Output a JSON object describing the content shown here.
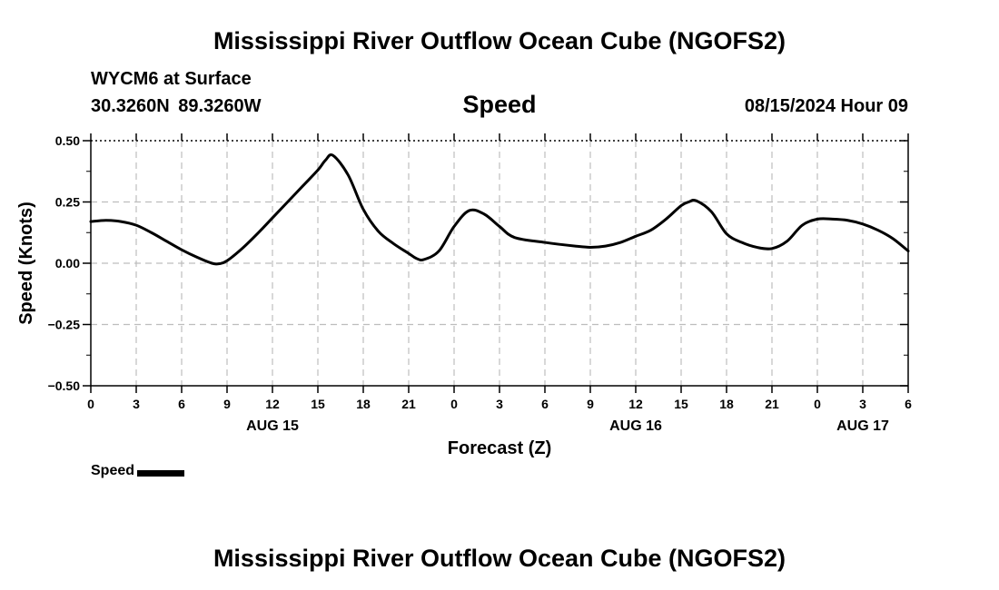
{
  "header": {
    "title": "Mississippi River Outflow Ocean Cube (NGOFS2)",
    "station": "WYCM6 at Surface",
    "coords": "30.3260N  89.3260W",
    "plot_label": "Speed",
    "run_time": "08/15/2024 Hour 09"
  },
  "footer": {
    "title": "Mississippi River Outflow Ocean Cube (NGOFS2)"
  },
  "chart_data": {
    "type": "line",
    "title": "Speed",
    "xlabel": "Forecast (Z)",
    "ylabel": "Speed (Knots)",
    "xlim": [
      0,
      54
    ],
    "ylim": [
      -0.5,
      0.5
    ],
    "grid": true,
    "yticks": [
      {
        "value": 0.5,
        "label": "0.50"
      },
      {
        "value": 0.25,
        "label": "0.25"
      },
      {
        "value": 0.0,
        "label": "0.00"
      },
      {
        "value": -0.25,
        "label": "−0.25"
      },
      {
        "value": -0.5,
        "label": "−0.50"
      }
    ],
    "xticks": [
      {
        "value": 0,
        "label": "0"
      },
      {
        "value": 3,
        "label": "3"
      },
      {
        "value": 6,
        "label": "6"
      },
      {
        "value": 9,
        "label": "9"
      },
      {
        "value": 12,
        "label": "12"
      },
      {
        "value": 15,
        "label": "15"
      },
      {
        "value": 18,
        "label": "18"
      },
      {
        "value": 21,
        "label": "21"
      },
      {
        "value": 24,
        "label": "0"
      },
      {
        "value": 27,
        "label": "3"
      },
      {
        "value": 30,
        "label": "6"
      },
      {
        "value": 33,
        "label": "9"
      },
      {
        "value": 36,
        "label": "12"
      },
      {
        "value": 39,
        "label": "15"
      },
      {
        "value": 42,
        "label": "18"
      },
      {
        "value": 45,
        "label": "21"
      },
      {
        "value": 48,
        "label": "0"
      },
      {
        "value": 51,
        "label": "3"
      },
      {
        "value": 54,
        "label": "6"
      }
    ],
    "date_labels": [
      {
        "value": 12,
        "label": "AUG 15"
      },
      {
        "value": 36,
        "label": "AUG 16"
      },
      {
        "value": 51,
        "label": "AUG 17"
      }
    ],
    "series": [
      {
        "name": "Speed",
        "color": "#000000",
        "x": [
          0,
          1,
          2,
          3,
          4,
          5,
          6,
          7,
          8,
          8.5,
          9,
          10,
          11,
          12,
          13,
          14,
          15,
          15.5,
          16,
          17,
          18,
          19,
          20,
          21,
          21.5,
          22,
          23,
          24,
          25,
          26,
          27,
          28,
          30,
          32,
          33,
          34,
          35,
          36,
          37,
          38,
          39,
          39.5,
          40,
          41,
          42,
          43,
          44,
          45,
          46,
          47,
          48,
          49,
          50,
          51,
          52,
          53,
          54
        ],
        "values": [
          0.17,
          0.175,
          0.17,
          0.155,
          0.125,
          0.09,
          0.055,
          0.025,
          0.0,
          -0.002,
          0.01,
          0.06,
          0.12,
          0.185,
          0.25,
          0.315,
          0.38,
          0.42,
          0.44,
          0.36,
          0.22,
          0.13,
          0.08,
          0.04,
          0.02,
          0.015,
          0.05,
          0.15,
          0.215,
          0.2,
          0.15,
          0.105,
          0.085,
          0.07,
          0.065,
          0.07,
          0.085,
          0.11,
          0.135,
          0.18,
          0.235,
          0.25,
          0.255,
          0.21,
          0.12,
          0.085,
          0.065,
          0.06,
          0.09,
          0.155,
          0.18,
          0.18,
          0.175,
          0.16,
          0.135,
          0.1,
          0.05
        ]
      }
    ]
  },
  "legend": {
    "label": "Speed"
  }
}
